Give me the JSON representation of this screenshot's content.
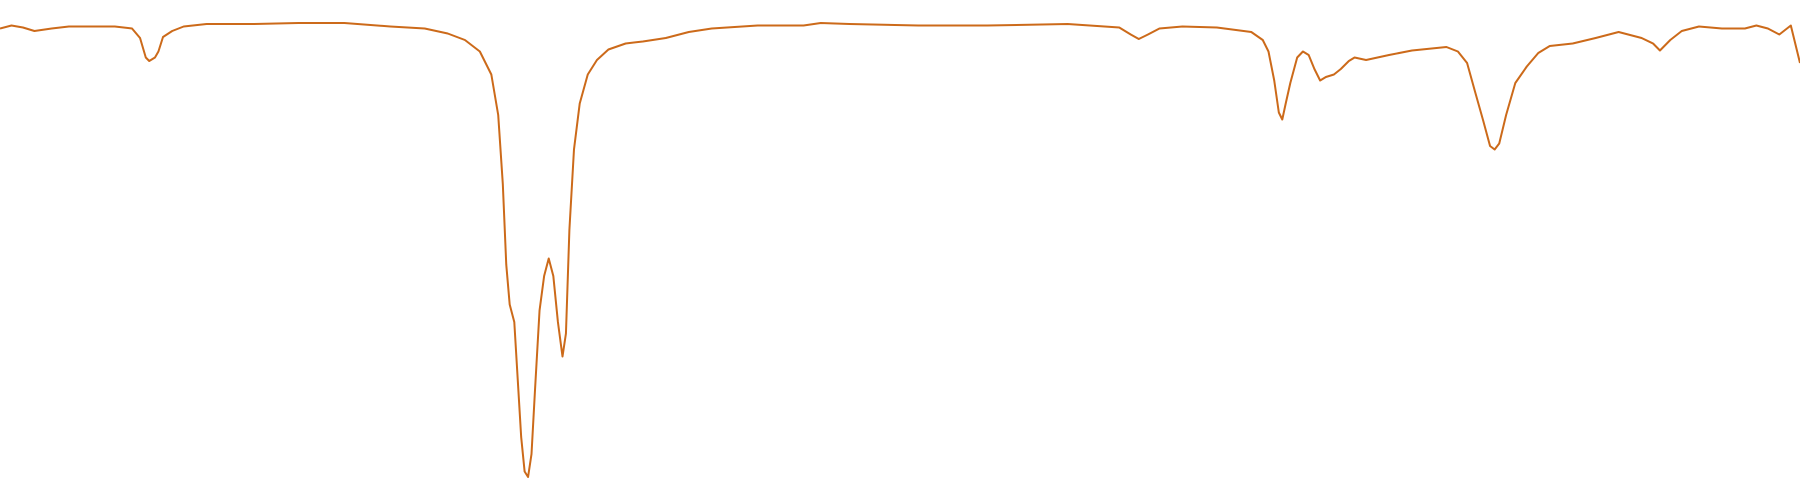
{
  "chart_data": {
    "type": "line",
    "color": "#cc6a1a",
    "xlim": [
      0,
      1568
    ],
    "ylim": [
      0,
      100
    ],
    "x": [
      0,
      10,
      20,
      30,
      45,
      60,
      80,
      100,
      115,
      122,
      127,
      130,
      135,
      138,
      142,
      150,
      160,
      180,
      220,
      260,
      300,
      340,
      370,
      390,
      405,
      418,
      428,
      434,
      438,
      441,
      444,
      448,
      451,
      454,
      457,
      460,
      463,
      466,
      470,
      474,
      478,
      482,
      486,
      490,
      493,
      496,
      500,
      505,
      512,
      520,
      530,
      545,
      560,
      580,
      600,
      620,
      660,
      700,
      715,
      740,
      800,
      860,
      930,
      975,
      985,
      992,
      1000,
      1010,
      1030,
      1060,
      1090,
      1100,
      1105,
      1110,
      1114,
      1117,
      1120,
      1124,
      1130,
      1135,
      1140,
      1145,
      1150,
      1155,
      1162,
      1168,
      1175,
      1180,
      1190,
      1210,
      1230,
      1260,
      1270,
      1278,
      1285,
      1292,
      1298,
      1302,
      1306,
      1312,
      1320,
      1330,
      1340,
      1350,
      1370,
      1390,
      1410,
      1430,
      1440,
      1446,
      1455,
      1465,
      1480,
      1500,
      1520,
      1530,
      1540,
      1550,
      1560,
      1568
    ],
    "values": [
      94.3,
      94.9,
      94.5,
      93.8,
      94.3,
      94.7,
      94.7,
      94.7,
      94.3,
      92.4,
      88.5,
      87.8,
      88.5,
      89.7,
      92.6,
      93.8,
      94.7,
      95.2,
      95.2,
      95.4,
      95.4,
      94.7,
      94.3,
      93.3,
      92.0,
      89.7,
      85.1,
      77.0,
      63.2,
      47.1,
      39.1,
      35.6,
      24.1,
      12.6,
      5.7,
      4.6,
      9.2,
      21.8,
      37.9,
      44.8,
      48.3,
      44.8,
      35.6,
      28.7,
      33.3,
      54.0,
      70.1,
      79.3,
      85.1,
      88.0,
      90.1,
      91.3,
      91.7,
      92.4,
      93.6,
      94.3,
      94.9,
      94.9,
      95.4,
      95.2,
      94.9,
      94.9,
      95.2,
      94.5,
      93.1,
      92.2,
      93.1,
      94.3,
      94.7,
      94.5,
      93.6,
      92.0,
      89.7,
      83.9,
      77.5,
      76.1,
      79.3,
      83.4,
      88.5,
      89.7,
      89.0,
      86.2,
      83.9,
      84.6,
      85.1,
      86.2,
      87.8,
      88.5,
      88.0,
      89.0,
      89.9,
      90.6,
      89.7,
      87.4,
      81.6,
      75.9,
      70.8,
      70.1,
      71.3,
      77.0,
      83.4,
      86.7,
      89.4,
      90.8,
      91.3,
      92.4,
      93.6,
      92.4,
      91.3,
      89.9,
      92.0,
      93.8,
      94.7,
      94.3,
      94.3,
      94.9,
      94.3,
      93.1,
      94.9,
      87.4
    ]
  }
}
